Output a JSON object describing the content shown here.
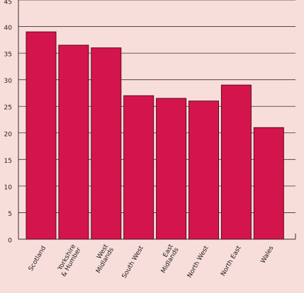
{
  "chart_data": {
    "type": "bar",
    "categories": [
      "Scotland",
      "Yorkshire\n& Humber",
      "West\nMidlands",
      "South West",
      "East\nMidlands",
      "North West",
      "North East",
      "Wales"
    ],
    "values": [
      39,
      36.5,
      36,
      27,
      26.5,
      26,
      29,
      21
    ],
    "color": "#d4154d",
    "ylim": [
      0,
      45
    ],
    "yticks": [
      0,
      5,
      10,
      15,
      20,
      25,
      30,
      35,
      40,
      45
    ],
    "grid": true
  }
}
